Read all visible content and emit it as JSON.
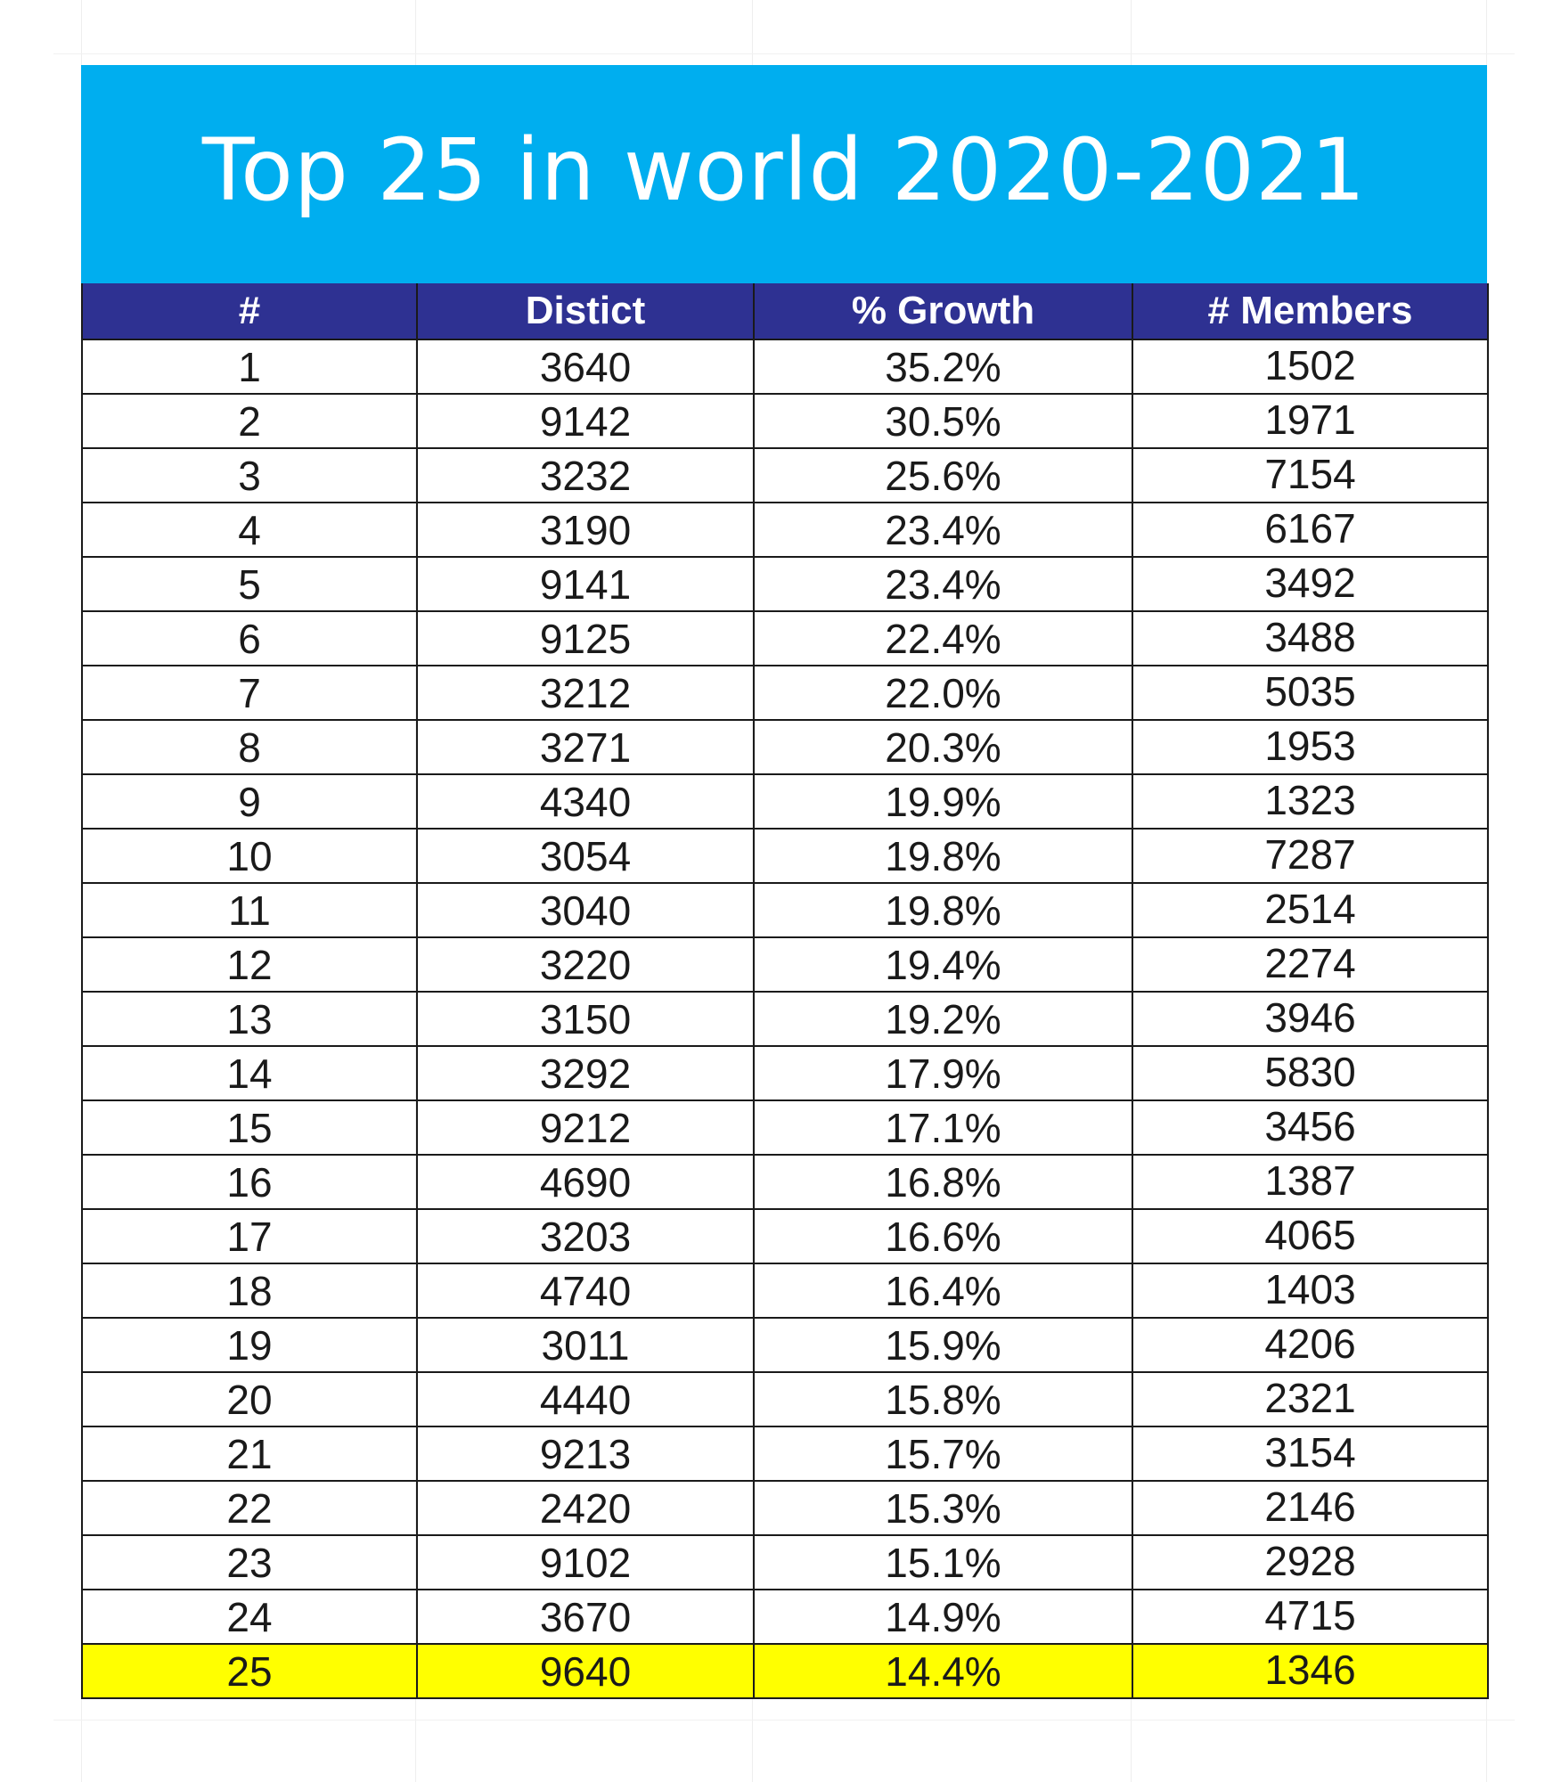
{
  "title": "Top 25 in world 2020-2021",
  "colors": {
    "banner": "#00aeef",
    "header": "#2e3192",
    "highlight": "#ffff00"
  },
  "columns": [
    "#",
    "Distict",
    "% Growth",
    "# Members"
  ],
  "rows": [
    {
      "rank": "1",
      "district": "3640",
      "growth": "35.2%",
      "members": "1502"
    },
    {
      "rank": "2",
      "district": "9142",
      "growth": "30.5%",
      "members": "1971"
    },
    {
      "rank": "3",
      "district": "3232",
      "growth": "25.6%",
      "members": "7154"
    },
    {
      "rank": "4",
      "district": "3190",
      "growth": "23.4%",
      "members": "6167"
    },
    {
      "rank": "5",
      "district": "9141",
      "growth": "23.4%",
      "members": "3492"
    },
    {
      "rank": "6",
      "district": "9125",
      "growth": "22.4%",
      "members": "3488"
    },
    {
      "rank": "7",
      "district": "3212",
      "growth": "22.0%",
      "members": "5035"
    },
    {
      "rank": "8",
      "district": "3271",
      "growth": "20.3%",
      "members": "1953"
    },
    {
      "rank": "9",
      "district": "4340",
      "growth": "19.9%",
      "members": "1323"
    },
    {
      "rank": "10",
      "district": "3054",
      "growth": "19.8%",
      "members": "7287"
    },
    {
      "rank": "11",
      "district": "3040",
      "growth": "19.8%",
      "members": "2514"
    },
    {
      "rank": "12",
      "district": "3220",
      "growth": "19.4%",
      "members": "2274"
    },
    {
      "rank": "13",
      "district": "3150",
      "growth": "19.2%",
      "members": "3946"
    },
    {
      "rank": "14",
      "district": "3292",
      "growth": "17.9%",
      "members": "5830"
    },
    {
      "rank": "15",
      "district": "9212",
      "growth": "17.1%",
      "members": "3456"
    },
    {
      "rank": "16",
      "district": "4690",
      "growth": "16.8%",
      "members": "1387"
    },
    {
      "rank": "17",
      "district": "3203",
      "growth": "16.6%",
      "members": "4065"
    },
    {
      "rank": "18",
      "district": "4740",
      "growth": "16.4%",
      "members": "1403"
    },
    {
      "rank": "19",
      "district": "3011",
      "growth": "15.9%",
      "members": "4206"
    },
    {
      "rank": "20",
      "district": "4440",
      "growth": "15.8%",
      "members": "2321"
    },
    {
      "rank": "21",
      "district": "9213",
      "growth": "15.7%",
      "members": "3154"
    },
    {
      "rank": "22",
      "district": "2420",
      "growth": "15.3%",
      "members": "2146"
    },
    {
      "rank": "23",
      "district": "9102",
      "growth": "15.1%",
      "members": "2928"
    },
    {
      "rank": "24",
      "district": "3670",
      "growth": "14.9%",
      "members": "4715"
    },
    {
      "rank": "25",
      "district": "9640",
      "growth": "14.4%",
      "members": "1346",
      "highlighted": true
    }
  ]
}
